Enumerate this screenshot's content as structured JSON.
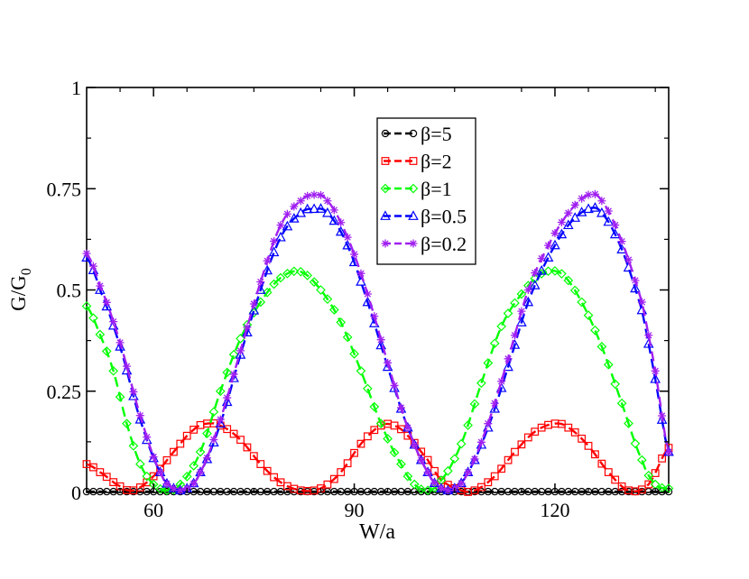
{
  "chart_data": {
    "type": "line",
    "title": "",
    "xlabel": "W/a",
    "ylabel_main": "G/G",
    "ylabel_sub": "0",
    "xlim": [
      50,
      137
    ],
    "ylim": [
      0,
      1
    ],
    "xticks": [
      60,
      90,
      120
    ],
    "xtick_labels": [
      "60",
      "90",
      "120"
    ],
    "yticks": [
      0,
      0.25,
      0.5,
      0.75,
      1
    ],
    "ytick_labels": [
      "0",
      "0.25",
      "0.5",
      "0.75",
      "1"
    ],
    "legend_position": "top-center",
    "series": [
      {
        "name": "β=5",
        "color": "#000000",
        "marker": "circle",
        "keypoints": [
          [
            50,
            0.002
          ],
          [
            137,
            0.002
          ]
        ]
      },
      {
        "name": "β=2",
        "color": "#ff0000",
        "marker": "square",
        "keypoints": [
          [
            50,
            0.07
          ],
          [
            52,
            0.05
          ],
          [
            55,
            0.015
          ],
          [
            57,
            0.005
          ],
          [
            60,
            0.04
          ],
          [
            63,
            0.1
          ],
          [
            66,
            0.155
          ],
          [
            68,
            0.17
          ],
          [
            70,
            0.165
          ],
          [
            73,
            0.13
          ],
          [
            76,
            0.07
          ],
          [
            79,
            0.025
          ],
          [
            82,
            0.005
          ],
          [
            85,
            0.01
          ],
          [
            88,
            0.05
          ],
          [
            91,
            0.12
          ],
          [
            94,
            0.165
          ],
          [
            96,
            0.165
          ],
          [
            98,
            0.14
          ],
          [
            101,
            0.08
          ],
          [
            103,
            0.03
          ],
          [
            106,
            0.005
          ],
          [
            108,
            0.005
          ],
          [
            111,
            0.04
          ],
          [
            114,
            0.1
          ],
          [
            117,
            0.15
          ],
          [
            120,
            0.17
          ],
          [
            122,
            0.16
          ],
          [
            125,
            0.115
          ],
          [
            128,
            0.05
          ],
          [
            131,
            0.005
          ],
          [
            134,
            0.02
          ],
          [
            137,
            0.11
          ]
        ]
      },
      {
        "name": "β=1",
        "color": "#00ff00",
        "marker": "diamond",
        "keypoints": [
          [
            50,
            0.46
          ],
          [
            52,
            0.39
          ],
          [
            54,
            0.3
          ],
          [
            56,
            0.17
          ],
          [
            58,
            0.07
          ],
          [
            60,
            0.02
          ],
          [
            62,
            0.005
          ],
          [
            64,
            0.02
          ],
          [
            67,
            0.1
          ],
          [
            70,
            0.25
          ],
          [
            73,
            0.38
          ],
          [
            76,
            0.47
          ],
          [
            79,
            0.53
          ],
          [
            82,
            0.545
          ],
          [
            85,
            0.5
          ],
          [
            88,
            0.42
          ],
          [
            91,
            0.3
          ],
          [
            94,
            0.17
          ],
          [
            97,
            0.07
          ],
          [
            99,
            0.02
          ],
          [
            101,
            0.005
          ],
          [
            103,
            0.03
          ],
          [
            106,
            0.12
          ],
          [
            109,
            0.27
          ],
          [
            112,
            0.41
          ],
          [
            115,
            0.49
          ],
          [
            118,
            0.54
          ],
          [
            121,
            0.54
          ],
          [
            124,
            0.47
          ],
          [
            127,
            0.36
          ],
          [
            130,
            0.22
          ],
          [
            133,
            0.08
          ],
          [
            135,
            0.02
          ],
          [
            137,
            0.01
          ]
        ]
      },
      {
        "name": "β=0.5",
        "color": "#0000ff",
        "marker": "triangle",
        "keypoints": [
          [
            50,
            0.58
          ],
          [
            52,
            0.5
          ],
          [
            55,
            0.36
          ],
          [
            58,
            0.18
          ],
          [
            61,
            0.05
          ],
          [
            63,
            0.01
          ],
          [
            65,
            0.01
          ],
          [
            67,
            0.05
          ],
          [
            70,
            0.17
          ],
          [
            73,
            0.34
          ],
          [
            76,
            0.5
          ],
          [
            79,
            0.63
          ],
          [
            82,
            0.69
          ],
          [
            84,
            0.7
          ],
          [
            86,
            0.69
          ],
          [
            89,
            0.61
          ],
          [
            92,
            0.47
          ],
          [
            95,
            0.31
          ],
          [
            98,
            0.16
          ],
          [
            101,
            0.05
          ],
          [
            103,
            0.01
          ],
          [
            105,
            0.01
          ],
          [
            107,
            0.05
          ],
          [
            110,
            0.16
          ],
          [
            113,
            0.31
          ],
          [
            116,
            0.47
          ],
          [
            119,
            0.58
          ],
          [
            122,
            0.66
          ],
          [
            125,
            0.7
          ],
          [
            127,
            0.69
          ],
          [
            130,
            0.6
          ],
          [
            133,
            0.45
          ],
          [
            135,
            0.28
          ],
          [
            137,
            0.1
          ]
        ]
      },
      {
        "name": "β=0.2",
        "color": "#a020f0",
        "marker": "star",
        "keypoints": [
          [
            50,
            0.59
          ],
          [
            52,
            0.51
          ],
          [
            55,
            0.37
          ],
          [
            58,
            0.19
          ],
          [
            61,
            0.05
          ],
          [
            63,
            0.01
          ],
          [
            65,
            0.01
          ],
          [
            67,
            0.05
          ],
          [
            70,
            0.18
          ],
          [
            73,
            0.35
          ],
          [
            76,
            0.52
          ],
          [
            79,
            0.66
          ],
          [
            82,
            0.72
          ],
          [
            84,
            0.735
          ],
          [
            86,
            0.72
          ],
          [
            89,
            0.63
          ],
          [
            92,
            0.49
          ],
          [
            95,
            0.32
          ],
          [
            98,
            0.16
          ],
          [
            101,
            0.05
          ],
          [
            103,
            0.01
          ],
          [
            105,
            0.01
          ],
          [
            107,
            0.05
          ],
          [
            110,
            0.17
          ],
          [
            113,
            0.33
          ],
          [
            116,
            0.5
          ],
          [
            119,
            0.61
          ],
          [
            122,
            0.69
          ],
          [
            125,
            0.735
          ],
          [
            127,
            0.72
          ],
          [
            130,
            0.62
          ],
          [
            133,
            0.47
          ],
          [
            135,
            0.3
          ],
          [
            137,
            0.1
          ]
        ]
      }
    ]
  }
}
